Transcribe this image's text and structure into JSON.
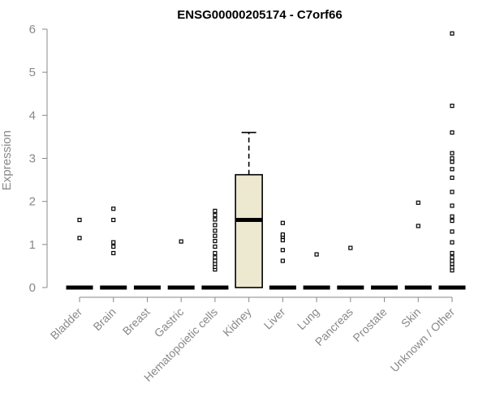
{
  "chart_data": {
    "type": "box",
    "title": "ENSG00000205174 - C7orf66",
    "ylabel": "Expression",
    "xlabel": "",
    "ylim": [
      0,
      6
    ],
    "yticks": [
      0,
      1,
      2,
      3,
      4,
      5,
      6
    ],
    "grid": false,
    "box_fill": "#ede8d0",
    "categories": [
      "Bladder",
      "Brain",
      "Breast",
      "Gastric",
      "Hematopoietic cells",
      "Kidney",
      "Liver",
      "Lung",
      "Pancreas",
      "Prostate",
      "Skin",
      "Unknown / Other"
    ],
    "boxes": [
      {
        "category": "Bladder",
        "q1": 0,
        "median": 0,
        "q3": 0,
        "whisker_low": 0,
        "whisker_high": 0,
        "outliers": [
          1.15,
          1.57
        ]
      },
      {
        "category": "Brain",
        "q1": 0,
        "median": 0,
        "q3": 0,
        "whisker_low": 0,
        "whisker_high": 0,
        "outliers": [
          0.8,
          0.95,
          1.05,
          1.57,
          1.83
        ]
      },
      {
        "category": "Breast",
        "q1": 0,
        "median": 0,
        "q3": 0,
        "whisker_low": 0,
        "whisker_high": 0,
        "outliers": []
      },
      {
        "category": "Gastric",
        "q1": 0,
        "median": 0,
        "q3": 0,
        "whisker_low": 0,
        "whisker_high": 0,
        "outliers": [
          1.07
        ]
      },
      {
        "category": "Hematopoietic cells",
        "q1": 0,
        "median": 0,
        "q3": 0,
        "whisker_low": 0,
        "whisker_high": 0,
        "outliers": [
          0.42,
          0.48,
          0.55,
          0.62,
          0.7,
          0.8,
          0.95,
          1.08,
          1.2,
          1.32,
          1.45,
          1.58,
          1.68,
          1.78
        ]
      },
      {
        "category": "Kidney",
        "q1": 0,
        "median": 1.57,
        "q3": 2.62,
        "whisker_low": 0,
        "whisker_high": 3.6,
        "outliers": []
      },
      {
        "category": "Liver",
        "q1": 0,
        "median": 0,
        "q3": 0,
        "whisker_low": 0,
        "whisker_high": 0,
        "outliers": [
          0.62,
          0.87,
          1.1,
          1.18,
          1.23,
          1.5
        ]
      },
      {
        "category": "Lung",
        "q1": 0,
        "median": 0,
        "q3": 0,
        "whisker_low": 0,
        "whisker_high": 0,
        "outliers": [
          0.77
        ]
      },
      {
        "category": "Pancreas",
        "q1": 0,
        "median": 0,
        "q3": 0,
        "whisker_low": 0,
        "whisker_high": 0,
        "outliers": [
          0.92
        ]
      },
      {
        "category": "Prostate",
        "q1": 0,
        "median": 0,
        "q3": 0,
        "whisker_low": 0,
        "whisker_high": 0,
        "outliers": []
      },
      {
        "category": "Skin",
        "q1": 0,
        "median": 0,
        "q3": 0,
        "whisker_low": 0,
        "whisker_high": 0,
        "outliers": [
          1.43,
          1.97
        ]
      },
      {
        "category": "Unknown / Other",
        "q1": 0,
        "median": 0,
        "q3": 0,
        "whisker_low": 0,
        "whisker_high": 0,
        "outliers": [
          0.4,
          0.47,
          0.55,
          0.62,
          0.7,
          0.8,
          1.05,
          1.3,
          1.55,
          1.65,
          1.9,
          2.22,
          2.55,
          2.75,
          2.92,
          3.0,
          3.12,
          3.6,
          4.22,
          5.9
        ]
      }
    ]
  }
}
